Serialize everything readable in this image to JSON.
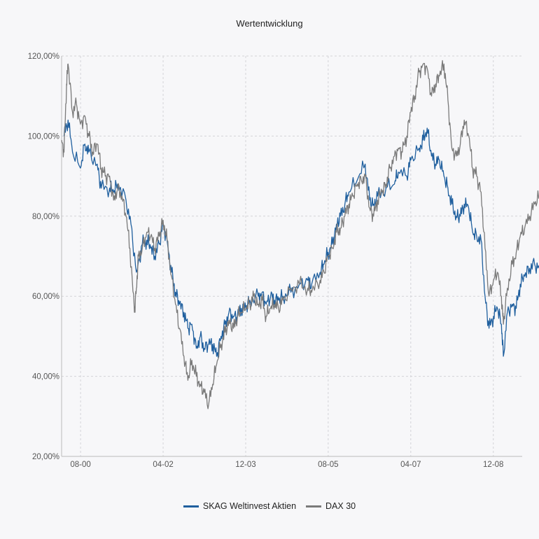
{
  "chart_data": {
    "type": "line",
    "title": "Wertentwicklung",
    "xlabel": "",
    "ylabel": "",
    "ylim": [
      20,
      120
    ],
    "yticks": [
      20,
      40,
      60,
      80,
      100,
      120
    ],
    "ytick_labels": [
      "20,00%",
      "40,00%",
      "60,00%",
      "80,00%",
      "100,00%",
      "120,00%"
    ],
    "xlim": [
      2000.2,
      2009.5
    ],
    "xticks": [
      2000.583,
      2002.25,
      2003.917,
      2005.583,
      2007.25,
      2008.917
    ],
    "xtick_labels": [
      "08-00",
      "04-02",
      "12-03",
      "08-05",
      "04-07",
      "12-08"
    ],
    "grid": true,
    "legend_position": "bottom",
    "series": [
      {
        "name": "SKAG Weltinvest Aktien",
        "color": "#1f5f9e",
        "points": [
          [
            2000.25,
            100
          ],
          [
            2000.33,
            104
          ],
          [
            2000.42,
            96
          ],
          [
            2000.58,
            92
          ],
          [
            2000.67,
            98
          ],
          [
            2000.75,
            96
          ],
          [
            2000.92,
            93
          ],
          [
            2001.0,
            87
          ],
          [
            2001.17,
            87
          ],
          [
            2001.25,
            86
          ],
          [
            2001.33,
            88
          ],
          [
            2001.5,
            84
          ],
          [
            2001.6,
            78
          ],
          [
            2001.71,
            66
          ],
          [
            2001.83,
            73
          ],
          [
            2001.92,
            74
          ],
          [
            2002.0,
            72
          ],
          [
            2002.08,
            70
          ],
          [
            2002.17,
            73
          ],
          [
            2002.25,
            78
          ],
          [
            2002.33,
            74
          ],
          [
            2002.42,
            66
          ],
          [
            2002.5,
            61
          ],
          [
            2002.58,
            58
          ],
          [
            2002.67,
            56
          ],
          [
            2002.75,
            52
          ],
          [
            2002.83,
            53
          ],
          [
            2002.92,
            47
          ],
          [
            2003.0,
            50
          ],
          [
            2003.08,
            47
          ],
          [
            2003.17,
            48
          ],
          [
            2003.25,
            48
          ],
          [
            2003.33,
            45
          ],
          [
            2003.42,
            50
          ],
          [
            2003.5,
            53
          ],
          [
            2003.58,
            56
          ],
          [
            2003.67,
            55
          ],
          [
            2003.75,
            55
          ],
          [
            2003.83,
            57
          ],
          [
            2003.92,
            57
          ],
          [
            2004.0,
            59
          ],
          [
            2004.17,
            60
          ],
          [
            2004.25,
            61
          ],
          [
            2004.33,
            58
          ],
          [
            2004.42,
            60
          ],
          [
            2004.5,
            59
          ],
          [
            2004.58,
            59
          ],
          [
            2004.67,
            60
          ],
          [
            2004.83,
            61
          ],
          [
            2005.0,
            63
          ],
          [
            2005.17,
            64
          ],
          [
            2005.25,
            63
          ],
          [
            2005.42,
            66
          ],
          [
            2005.5,
            68
          ],
          [
            2005.58,
            71
          ],
          [
            2005.67,
            73
          ],
          [
            2005.75,
            78
          ],
          [
            2005.83,
            80
          ],
          [
            2005.92,
            83
          ],
          [
            2006.0,
            86
          ],
          [
            2006.17,
            89
          ],
          [
            2006.33,
            93
          ],
          [
            2006.42,
            84
          ],
          [
            2006.5,
            83
          ],
          [
            2006.58,
            85
          ],
          [
            2006.75,
            87
          ],
          [
            2006.92,
            88
          ],
          [
            2007.0,
            91
          ],
          [
            2007.17,
            90
          ],
          [
            2007.25,
            94
          ],
          [
            2007.42,
            97
          ],
          [
            2007.5,
            99
          ],
          [
            2007.58,
            102
          ],
          [
            2007.67,
            95
          ],
          [
            2007.75,
            93
          ],
          [
            2007.83,
            94
          ],
          [
            2007.92,
            90
          ],
          [
            2008.0,
            87
          ],
          [
            2008.08,
            83
          ],
          [
            2008.17,
            80
          ],
          [
            2008.25,
            80
          ],
          [
            2008.33,
            83
          ],
          [
            2008.42,
            82
          ],
          [
            2008.5,
            76
          ],
          [
            2008.58,
            75
          ],
          [
            2008.67,
            74
          ],
          [
            2008.75,
            60
          ],
          [
            2008.83,
            52
          ],
          [
            2008.92,
            55
          ],
          [
            2009.0,
            57
          ],
          [
            2009.08,
            53
          ],
          [
            2009.12,
            45
          ],
          [
            2009.2,
            56
          ],
          [
            2009.3,
            58
          ],
          [
            2009.38,
            57
          ],
          [
            2009.46,
            63
          ],
          [
            2009.55,
            65
          ],
          [
            2009.65,
            67
          ],
          [
            2009.75,
            68
          ],
          [
            2009.85,
            67
          ],
          [
            2009.92,
            70
          ]
        ]
      },
      {
        "name": "DAX 30",
        "color": "#7a7a7a",
        "points": [
          [
            2000.2,
            99
          ],
          [
            2000.25,
            96
          ],
          [
            2000.3,
            113
          ],
          [
            2000.33,
            118
          ],
          [
            2000.42,
            106
          ],
          [
            2000.5,
            108
          ],
          [
            2000.58,
            103
          ],
          [
            2000.67,
            105
          ],
          [
            2000.75,
            100
          ],
          [
            2000.83,
            96
          ],
          [
            2000.92,
            98
          ],
          [
            2001.0,
            92
          ],
          [
            2001.08,
            90
          ],
          [
            2001.17,
            90
          ],
          [
            2001.25,
            84
          ],
          [
            2001.33,
            87
          ],
          [
            2001.42,
            85
          ],
          [
            2001.5,
            80
          ],
          [
            2001.58,
            72
          ],
          [
            2001.67,
            56
          ],
          [
            2001.71,
            62
          ],
          [
            2001.75,
            70
          ],
          [
            2001.83,
            72
          ],
          [
            2001.92,
            76
          ],
          [
            2002.0,
            75
          ],
          [
            2002.08,
            72
          ],
          [
            2002.17,
            75
          ],
          [
            2002.25,
            79
          ],
          [
            2002.33,
            74
          ],
          [
            2002.42,
            65
          ],
          [
            2002.5,
            58
          ],
          [
            2002.58,
            52
          ],
          [
            2002.67,
            45
          ],
          [
            2002.75,
            39
          ],
          [
            2002.83,
            44
          ],
          [
            2002.92,
            40
          ],
          [
            2003.0,
            38
          ],
          [
            2003.08,
            36
          ],
          [
            2003.17,
            33
          ],
          [
            2003.25,
            38
          ],
          [
            2003.33,
            43
          ],
          [
            2003.42,
            48
          ],
          [
            2003.5,
            51
          ],
          [
            2003.58,
            54
          ],
          [
            2003.67,
            52
          ],
          [
            2003.75,
            55
          ],
          [
            2003.83,
            56
          ],
          [
            2003.92,
            57
          ],
          [
            2004.0,
            58
          ],
          [
            2004.08,
            60
          ],
          [
            2004.17,
            58
          ],
          [
            2004.25,
            59
          ],
          [
            2004.33,
            55
          ],
          [
            2004.42,
            57
          ],
          [
            2004.5,
            58
          ],
          [
            2004.58,
            57
          ],
          [
            2004.67,
            59
          ],
          [
            2004.83,
            62
          ],
          [
            2005.0,
            63
          ],
          [
            2005.17,
            62
          ],
          [
            2005.25,
            61
          ],
          [
            2005.42,
            64
          ],
          [
            2005.5,
            66
          ],
          [
            2005.58,
            70
          ],
          [
            2005.67,
            72
          ],
          [
            2005.75,
            76
          ],
          [
            2005.83,
            77
          ],
          [
            2005.92,
            80
          ],
          [
            2006.0,
            83
          ],
          [
            2006.08,
            85
          ],
          [
            2006.17,
            88
          ],
          [
            2006.25,
            89
          ],
          [
            2006.33,
            90
          ],
          [
            2006.42,
            82
          ],
          [
            2006.5,
            80
          ],
          [
            2006.58,
            84
          ],
          [
            2006.67,
            86
          ],
          [
            2006.75,
            88
          ],
          [
            2006.83,
            92
          ],
          [
            2006.92,
            95
          ],
          [
            2007.0,
            97
          ],
          [
            2007.08,
            96
          ],
          [
            2007.17,
            100
          ],
          [
            2007.25,
            106
          ],
          [
            2007.33,
            110
          ],
          [
            2007.42,
            116
          ],
          [
            2007.5,
            118
          ],
          [
            2007.58,
            117
          ],
          [
            2007.67,
            110
          ],
          [
            2007.75,
            113
          ],
          [
            2007.83,
            115
          ],
          [
            2007.92,
            118
          ],
          [
            2008.0,
            109
          ],
          [
            2008.08,
            97
          ],
          [
            2008.17,
            95
          ],
          [
            2008.25,
            98
          ],
          [
            2008.33,
            104
          ],
          [
            2008.42,
            100
          ],
          [
            2008.5,
            92
          ],
          [
            2008.58,
            90
          ],
          [
            2008.67,
            86
          ],
          [
            2008.75,
            72
          ],
          [
            2008.83,
            60
          ],
          [
            2008.92,
            64
          ],
          [
            2009.0,
            66
          ],
          [
            2009.08,
            60
          ],
          [
            2009.12,
            53
          ],
          [
            2009.2,
            62
          ],
          [
            2009.3,
            68
          ],
          [
            2009.38,
            71
          ],
          [
            2009.46,
            75
          ],
          [
            2009.55,
            77
          ],
          [
            2009.65,
            80
          ],
          [
            2009.75,
            83
          ],
          [
            2009.85,
            85
          ],
          [
            2009.92,
            86
          ]
        ]
      }
    ]
  }
}
